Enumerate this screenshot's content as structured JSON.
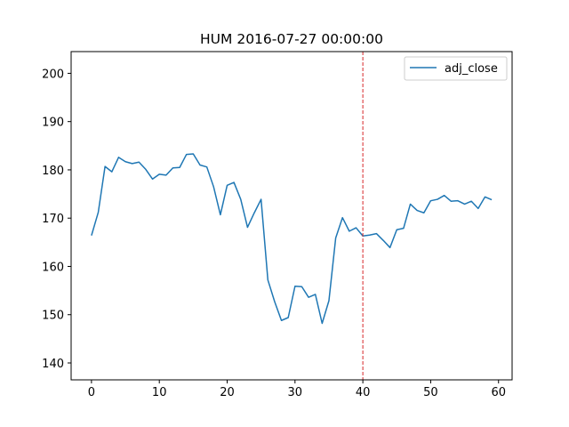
{
  "chart_data": {
    "type": "line",
    "title": "HUM 2016-07-27 00:00:00",
    "xlabel": "",
    "ylabel": "",
    "xlim": [
      -3,
      62
    ],
    "ylim": [
      136.5,
      204.5
    ],
    "x_ticks": [
      0,
      10,
      20,
      30,
      40,
      50,
      60
    ],
    "y_ticks": [
      140,
      150,
      160,
      170,
      180,
      190,
      200
    ],
    "grid": false,
    "legend_position": "top-right",
    "series": [
      {
        "name": "adj_close",
        "color": "#1f77b4",
        "x": [
          0,
          1,
          2,
          3,
          4,
          5,
          6,
          7,
          8,
          9,
          10,
          11,
          12,
          13,
          14,
          15,
          16,
          17,
          18,
          19,
          20,
          21,
          22,
          23,
          24,
          25,
          26,
          27,
          28,
          29,
          30,
          31,
          32,
          33,
          34,
          35,
          36,
          37,
          38,
          39,
          40,
          41,
          42,
          43,
          44,
          45,
          46,
          47,
          48,
          49,
          50,
          51,
          52,
          53,
          54,
          55,
          56,
          57,
          58,
          59
        ],
        "values": [
          166.4,
          171.2,
          180.7,
          179.6,
          182.6,
          181.7,
          181.3,
          181.6,
          180.1,
          178.1,
          179.1,
          178.9,
          180.4,
          180.5,
          183.2,
          183.3,
          181.0,
          180.6,
          176.5,
          170.7,
          176.8,
          177.4,
          173.9,
          168.1,
          171.1,
          173.9,
          157.2,
          152.7,
          148.8,
          149.4,
          155.9,
          155.8,
          153.6,
          154.2,
          148.2,
          152.9,
          165.9,
          170.1,
          167.3,
          168.0,
          166.3,
          166.5,
          166.8,
          165.4,
          163.9,
          167.6,
          167.9,
          172.9,
          171.6,
          171.1,
          173.6,
          173.9,
          174.7,
          173.5,
          173.6,
          172.9,
          173.5,
          172.0,
          174.4,
          173.8
        ]
      }
    ],
    "annotations": [
      {
        "type": "vline",
        "x": 40,
        "color": "#d62728",
        "style": "dashed"
      }
    ]
  }
}
